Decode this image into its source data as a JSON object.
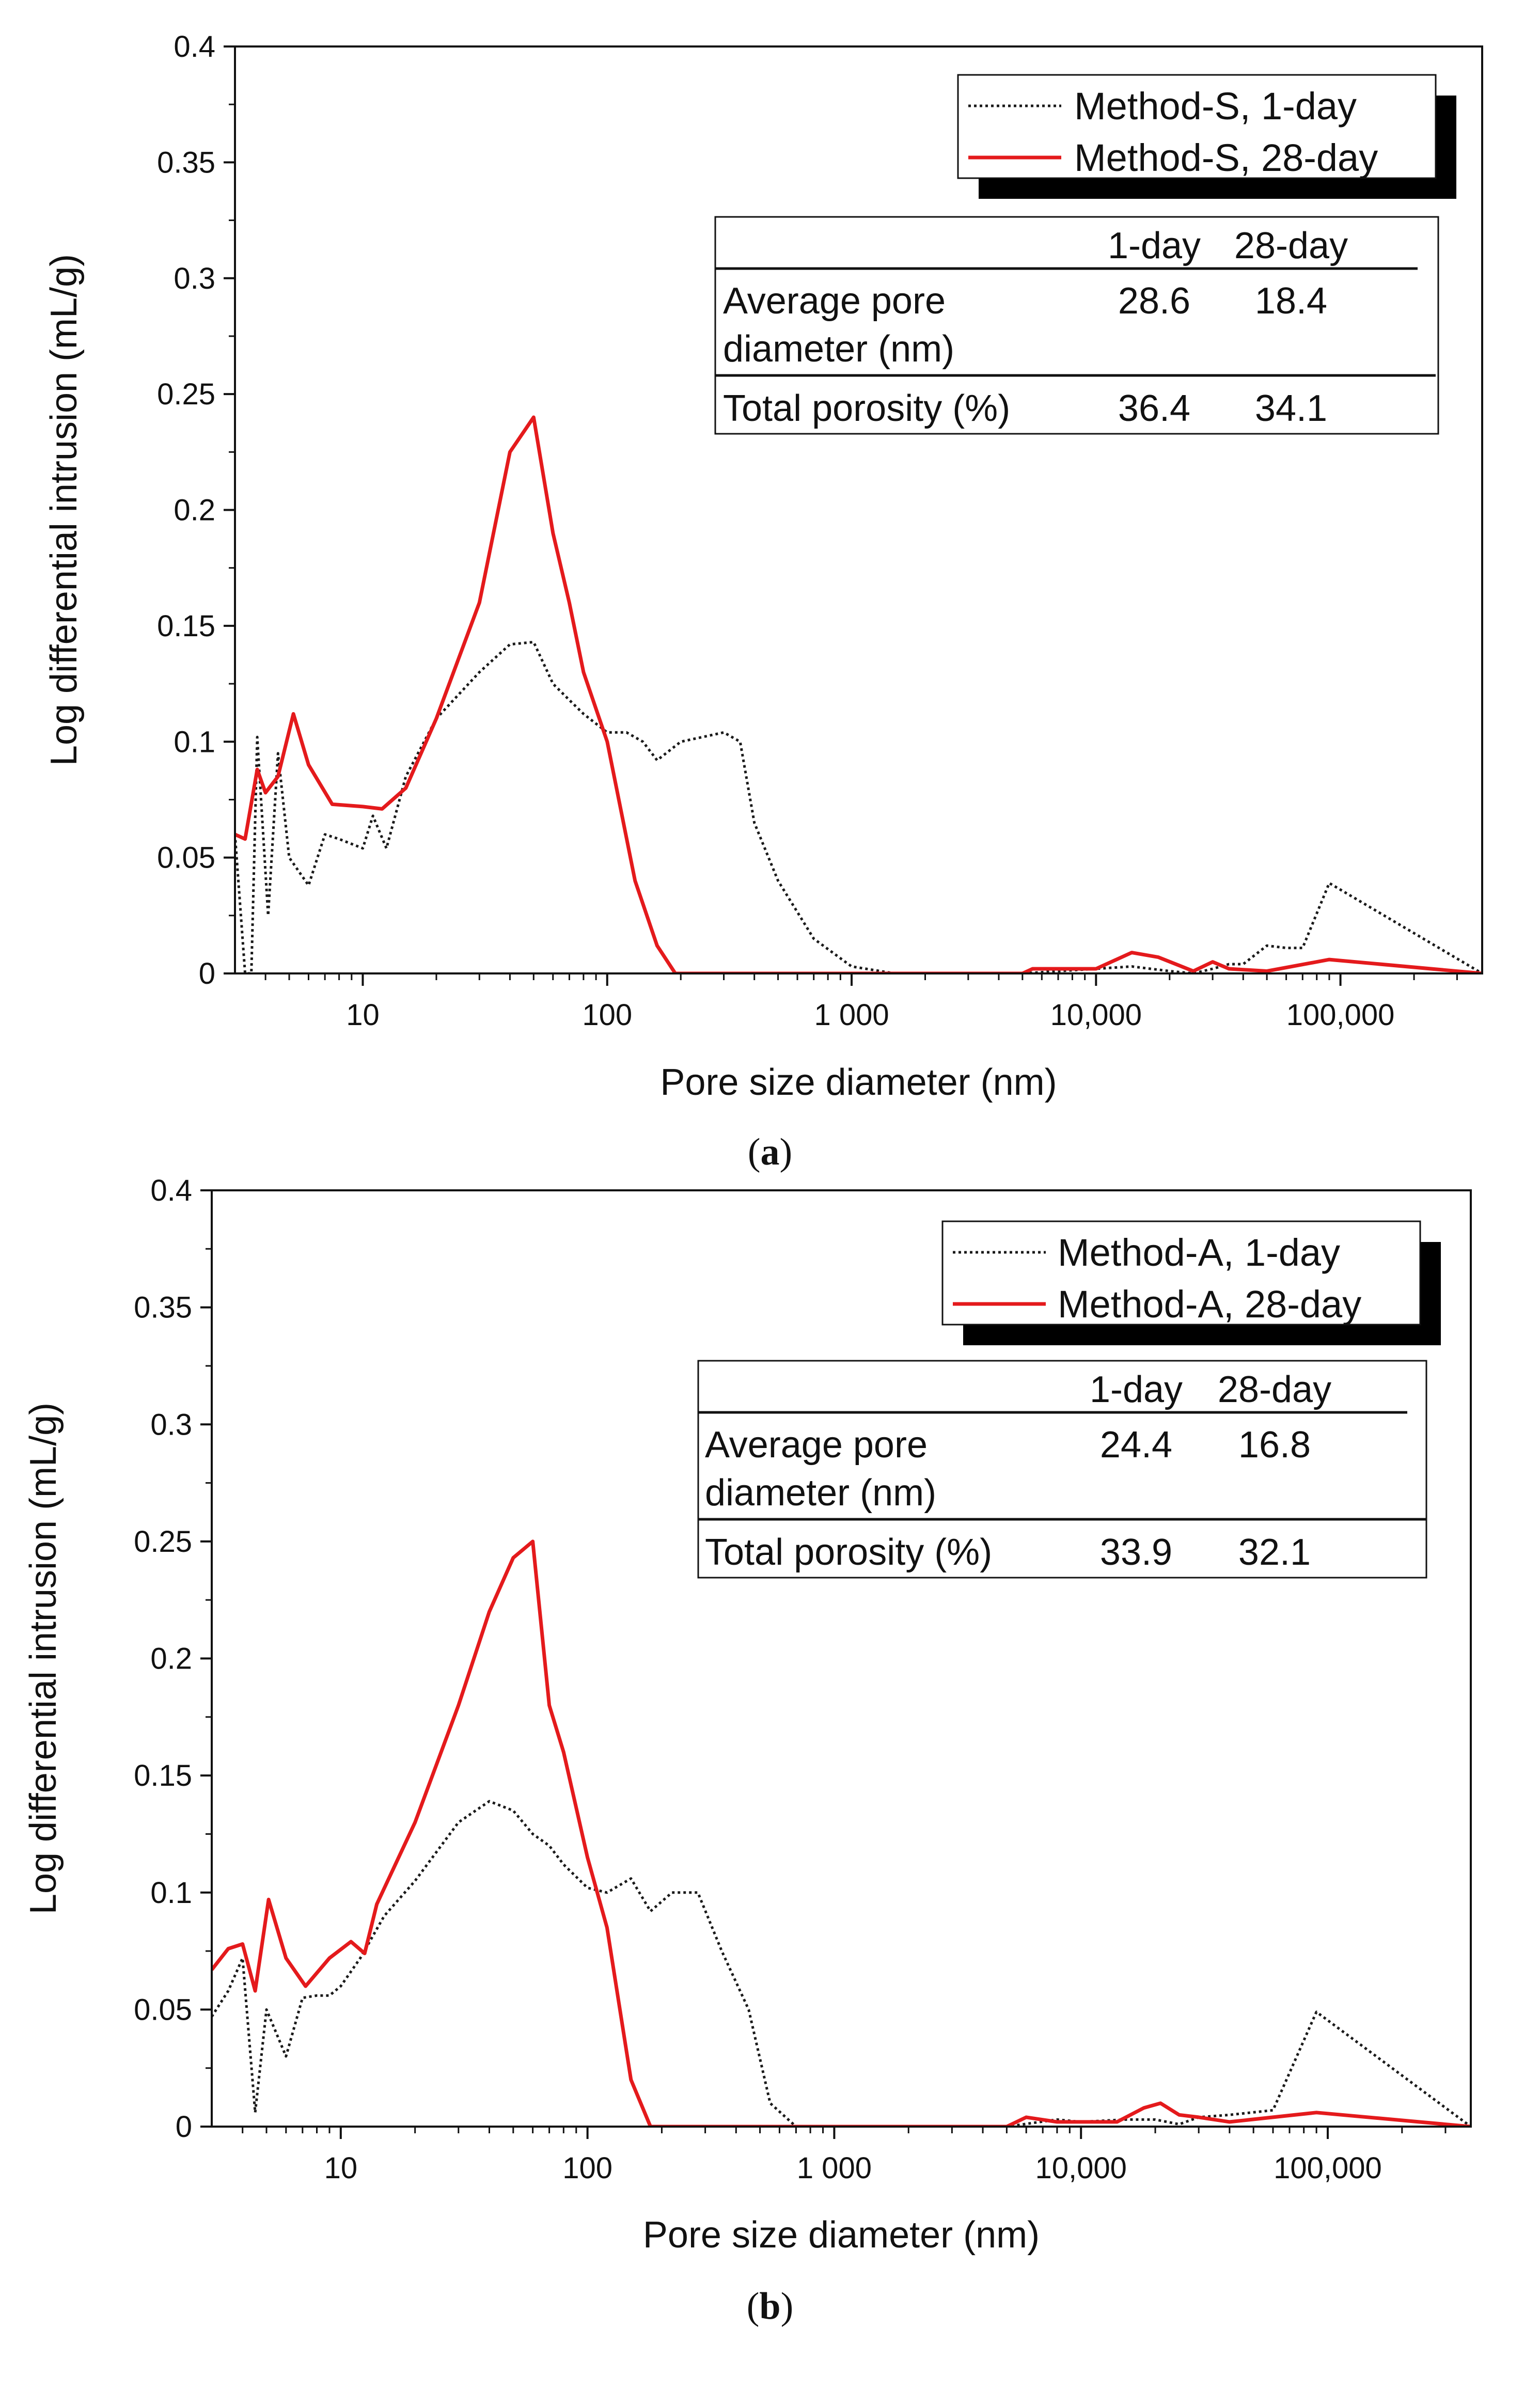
{
  "chart_data": [
    {
      "type": "line",
      "panel": "a",
      "caption_open": "(",
      "caption_letter": "a",
      "caption_close": ")",
      "xlabel": "Pore size diameter (nm)",
      "ylabel": "Log differential intrusion (mL/g)",
      "xscale": "log",
      "xlim": [
        3,
        380000
      ],
      "ylim": [
        0,
        0.4
      ],
      "yticks": [
        0,
        0.05,
        0.1,
        0.15,
        0.2,
        0.25,
        0.3,
        0.35,
        0.4
      ],
      "ytick_labels": [
        "0",
        "0.05",
        "0.1",
        "0.15",
        "0.2",
        "0.25",
        "0.3",
        "0.35",
        "0.4"
      ],
      "xticks": [
        10,
        100,
        1000,
        10000,
        100000
      ],
      "xtick_labels": [
        "10",
        "100",
        "1 000",
        "10,000",
        "100,000"
      ],
      "legend_position": "top-right",
      "series": [
        {
          "name": "Method-S,   1-day",
          "style": "dotted",
          "color": "#1a1a1a",
          "x": [
            3,
            3.3,
            3.5,
            3.7,
            4.1,
            4.5,
            5,
            6,
            7,
            8,
            10,
            11,
            12.5,
            15,
            20,
            30,
            40,
            50,
            60,
            70,
            80,
            100,
            120,
            140,
            160,
            200,
            300,
            350,
            400,
            500,
            700,
            1000,
            1500,
            2000,
            5000,
            10000,
            14000,
            20000,
            25000,
            30000,
            35000,
            40000,
            50000,
            60000,
            70000,
            90000,
            380000
          ],
          "y": [
            0.06,
            0.0,
            0.0,
            0.102,
            0.025,
            0.095,
            0.05,
            0.038,
            0.06,
            0.058,
            0.054,
            0.068,
            0.054,
            0.085,
            0.11,
            0.13,
            0.142,
            0.143,
            0.125,
            0.118,
            0.112,
            0.104,
            0.104,
            0.1,
            0.092,
            0.1,
            0.104,
            0.1,
            0.065,
            0.04,
            0.015,
            0.003,
            0.0,
            0.0,
            0.0,
            0.002,
            0.003,
            0.001,
            0.0,
            0.002,
            0.004,
            0.004,
            0.012,
            0.011,
            0.011,
            0.039,
            0.0
          ]
        },
        {
          "name": "Method-S, 28-day",
          "style": "solid",
          "color": "#e41a1c",
          "x": [
            3,
            3.3,
            3.7,
            4.0,
            4.5,
            5.2,
            6,
            7.5,
            10,
            12,
            15,
            20,
            30,
            40,
            50,
            60,
            70,
            80,
            100,
            130,
            160,
            190,
            300,
            1000,
            3000,
            5000,
            5500,
            10000,
            14000,
            18000,
            25000,
            30000,
            35000,
            50000,
            90000,
            380000
          ],
          "y": [
            0.06,
            0.058,
            0.088,
            0.078,
            0.085,
            0.112,
            0.09,
            0.073,
            0.072,
            0.071,
            0.08,
            0.11,
            0.16,
            0.225,
            0.24,
            0.19,
            0.16,
            0.13,
            0.1,
            0.04,
            0.012,
            0.0,
            0.0,
            0.0,
            0.0,
            0.0,
            0.002,
            0.002,
            0.009,
            0.007,
            0.001,
            0.005,
            0.002,
            0.001,
            0.006,
            0.0
          ]
        }
      ],
      "legend": {
        "entries": [
          "Method-S,   1-day",
          "Method-S, 28-day"
        ]
      },
      "table": {
        "col_headers": [
          "1-day",
          "28-day"
        ],
        "row1_label_line1": "Average pore",
        "row1_label_line2": "diameter (nm)",
        "row1_values": [
          "28.6",
          "18.4"
        ],
        "row2_label": "Total porosity (%)",
        "row2_values": [
          "36.4",
          "34.1"
        ]
      }
    },
    {
      "type": "line",
      "panel": "b",
      "caption_open": "(",
      "caption_letter": "b",
      "caption_close": ")",
      "xlabel": "Pore size diameter (nm)",
      "ylabel": "Log differential intrusion (mL/g)",
      "xscale": "log",
      "xlim": [
        3,
        380000
      ],
      "ylim": [
        0,
        0.4
      ],
      "yticks": [
        0,
        0.05,
        0.1,
        0.15,
        0.2,
        0.25,
        0.3,
        0.35,
        0.4
      ],
      "ytick_labels": [
        "0",
        "0.05",
        "0.1",
        "0.15",
        "0.2",
        "0.25",
        "0.3",
        "0.35",
        "0.4"
      ],
      "xticks": [
        10,
        100,
        1000,
        10000,
        100000
      ],
      "xtick_labels": [
        "10",
        "100",
        "1 000",
        "10,000",
        "100,000"
      ],
      "legend_position": "top-right",
      "series": [
        {
          "name": "Method-A,   1-day",
          "style": "dotted",
          "color": "#1a1a1a",
          "x": [
            3,
            3.5,
            4.0,
            4.5,
            5.0,
            6.0,
            7.0,
            8.0,
            9.0,
            10,
            12,
            15,
            20,
            30,
            40,
            50,
            60,
            70,
            80,
            100,
            120,
            150,
            180,
            220,
            280,
            350,
            450,
            550,
            700,
            1000,
            3000,
            5000,
            8000,
            10000,
            15000,
            20000,
            25000,
            30000,
            40000,
            60000,
            90000,
            380000
          ],
          "y": [
            0.047,
            0.058,
            0.072,
            0.006,
            0.05,
            0.03,
            0.055,
            0.056,
            0.056,
            0.06,
            0.072,
            0.09,
            0.105,
            0.13,
            0.139,
            0.135,
            0.125,
            0.12,
            0.112,
            0.102,
            0.1,
            0.106,
            0.092,
            0.1,
            0.1,
            0.075,
            0.05,
            0.01,
            0.0,
            0.0,
            0.0,
            0.0,
            0.003,
            0.002,
            0.003,
            0.003,
            0.001,
            0.004,
            0.005,
            0.007,
            0.049,
            0.0
          ]
        },
        {
          "name": "Method-A, 28-day",
          "style": "solid",
          "color": "#e41a1c",
          "x": [
            3,
            3.5,
            4.0,
            4.5,
            5.1,
            6.0,
            7.2,
            9.0,
            11,
            12.5,
            14,
            20,
            30,
            40,
            50,
            60,
            70,
            80,
            100,
            120,
            150,
            180,
            300,
            1000,
            3000,
            5000,
            6000,
            8000,
            10000,
            14000,
            18000,
            21000,
            25000,
            30000,
            40000,
            90000,
            380000
          ],
          "y": [
            0.067,
            0.076,
            0.078,
            0.058,
            0.097,
            0.072,
            0.06,
            0.072,
            0.079,
            0.074,
            0.095,
            0.13,
            0.18,
            0.22,
            0.243,
            0.25,
            0.18,
            0.16,
            0.115,
            0.085,
            0.02,
            0.0,
            0.0,
            0.0,
            0.0,
            0.0,
            0.004,
            0.002,
            0.002,
            0.002,
            0.008,
            0.01,
            0.005,
            0.004,
            0.002,
            0.006,
            0.0
          ]
        }
      ],
      "legend": {
        "entries": [
          "Method-A,   1-day",
          "Method-A, 28-day"
        ]
      },
      "table": {
        "col_headers": [
          "1-day",
          "28-day"
        ],
        "row1_label_line1": "Average pore",
        "row1_label_line2": "diameter (nm)",
        "row1_values": [
          "24.4",
          "16.8"
        ],
        "row2_label": "Total porosity (%)",
        "row2_values": [
          "33.9",
          "32.1"
        ]
      }
    }
  ]
}
